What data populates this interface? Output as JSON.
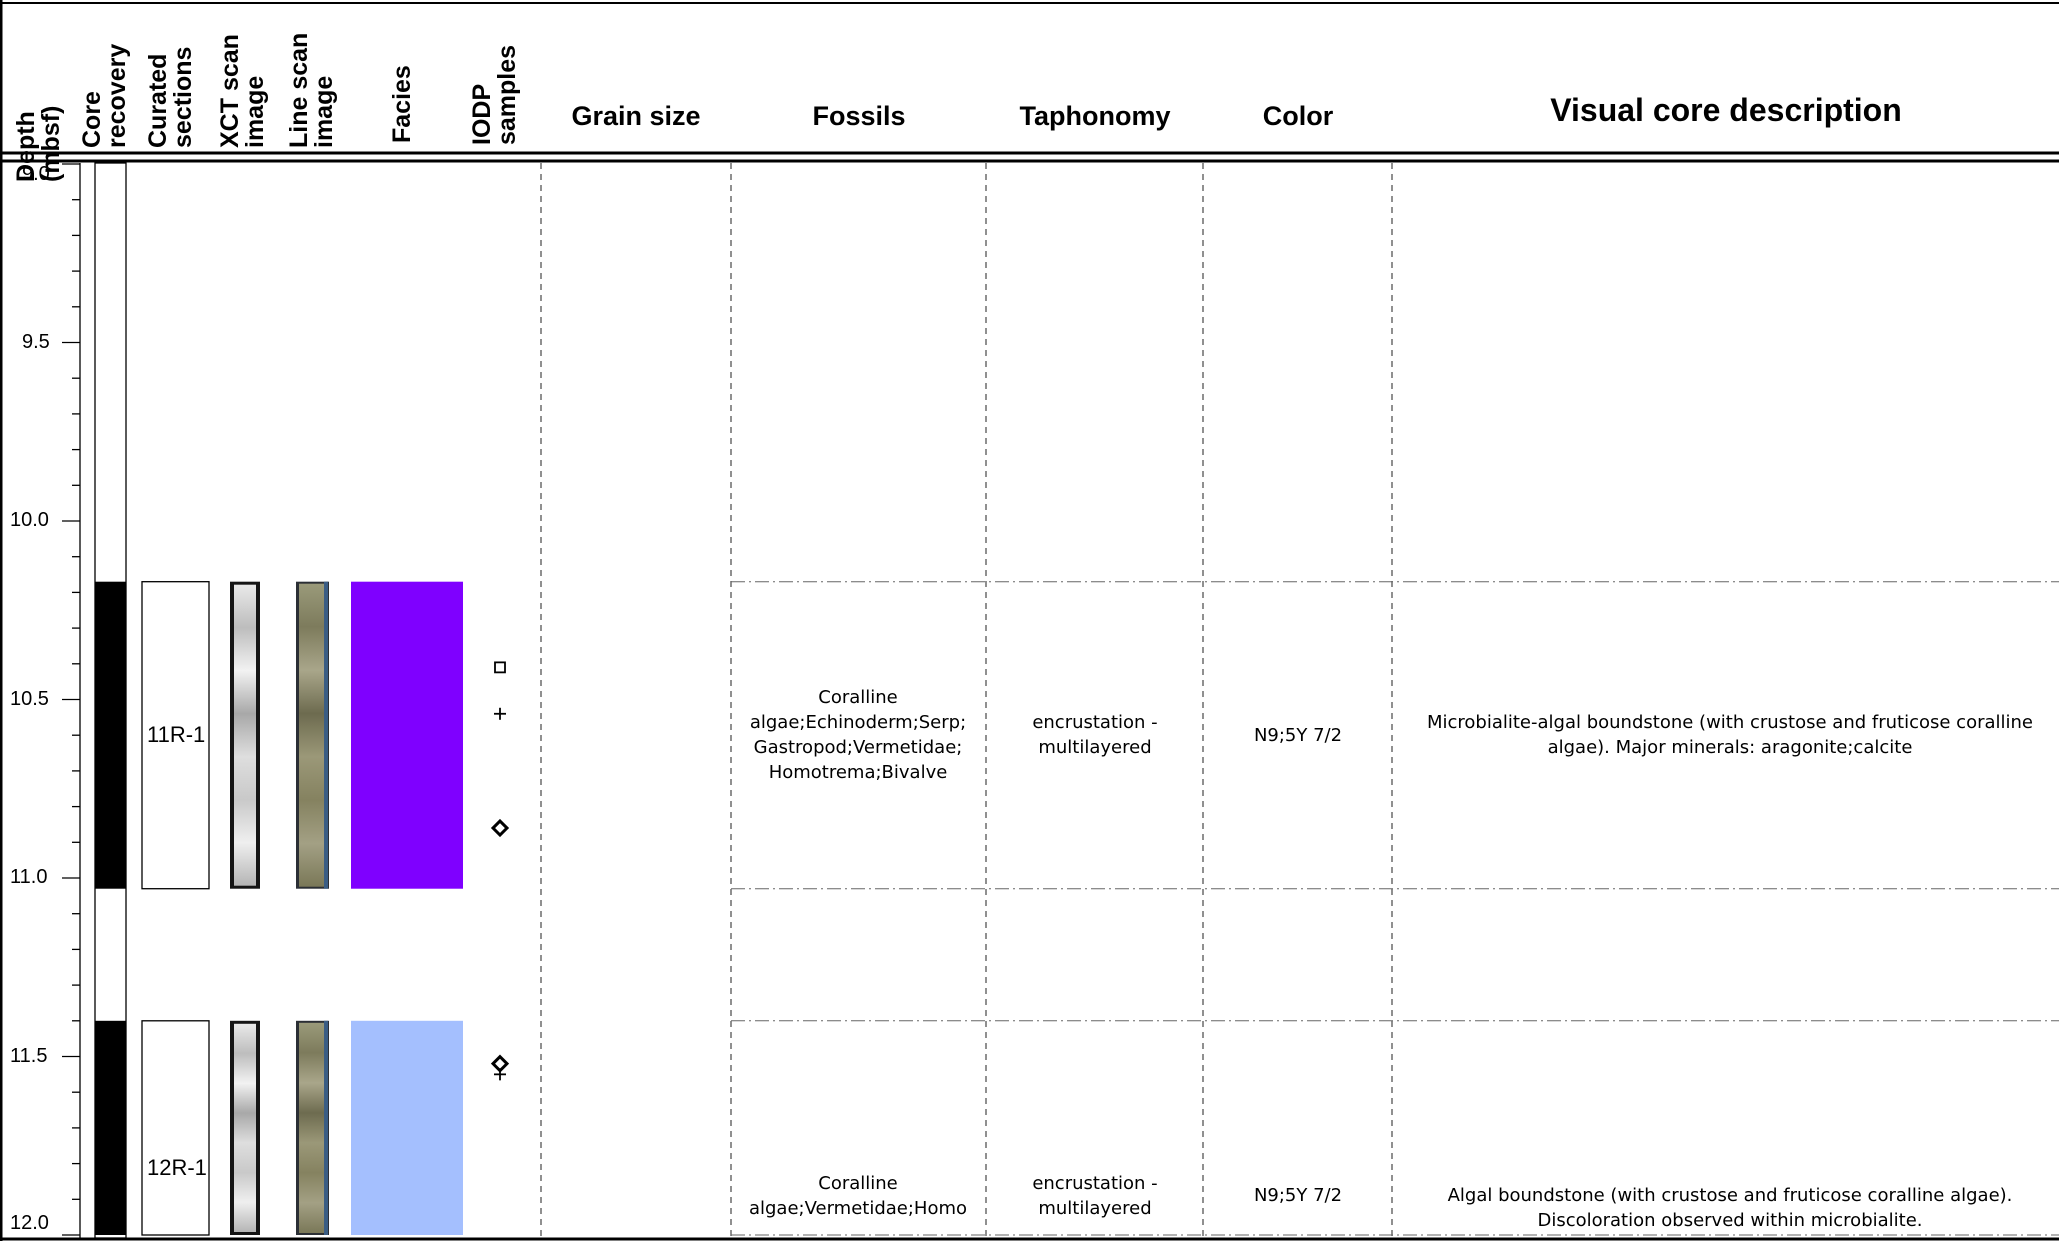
{
  "headers": {
    "depth": "Depth\n(mbsf)",
    "core_recovery": "Core\nrecovery",
    "curated_sections": "Curated\nsections",
    "xct_scan": "XCT scan\nimage",
    "line_scan": "Line scan\nimage",
    "facies": "Facies",
    "iodp_samples": "IODP\nsamples",
    "grain_size": "Grain size",
    "fossils": "Fossils",
    "taphonomy": "Taphonomy",
    "color": "Color",
    "visual_core_description": "Visual core description"
  },
  "depth_axis": {
    "min": 9.0,
    "max": 12.0,
    "major_ticks": [
      "9.0",
      "9.5",
      "10.0",
      "10.5",
      "11.0",
      "11.5",
      "12.0"
    ],
    "minor_step": 0.1
  },
  "cores": [
    {
      "section": "11R-1",
      "top": 10.17,
      "bottom": 11.03,
      "facies_color": "#7f00ff",
      "fossils": "Coralline algae;Echinoderm;Serp; Gastropod;Vermetidae; Homotrema;Bivalve",
      "taphonomy": "encrustation - multilayered",
      "color": "N9;5Y 7/2",
      "description": "Microbialite-algal boundstone (with crustose and fruticose coralline algae). Major minerals: aragonite;calcite",
      "samples": [
        {
          "symbol": "square-icon",
          "depth": 10.41
        },
        {
          "symbol": "plus-icon",
          "depth": 10.54
        },
        {
          "symbol": "diamond-icon",
          "depth": 10.86
        }
      ]
    },
    {
      "section": "12R-1",
      "top": 11.4,
      "bottom": 12.0,
      "facies_color": "#a4bffe",
      "fossils": "Coralline algae;Vermetidae;Homo",
      "taphonomy": "encrustation - multilayered",
      "color": "N9;5Y 7/2",
      "description": "Algal boundstone (with crustose and fruticose coralline algae). Discoloration observed within microbialite.",
      "samples": [
        {
          "symbol": "diamond-icon",
          "depth": 11.52
        },
        {
          "symbol": "plus-icon",
          "depth": 11.55
        }
      ]
    }
  ]
}
